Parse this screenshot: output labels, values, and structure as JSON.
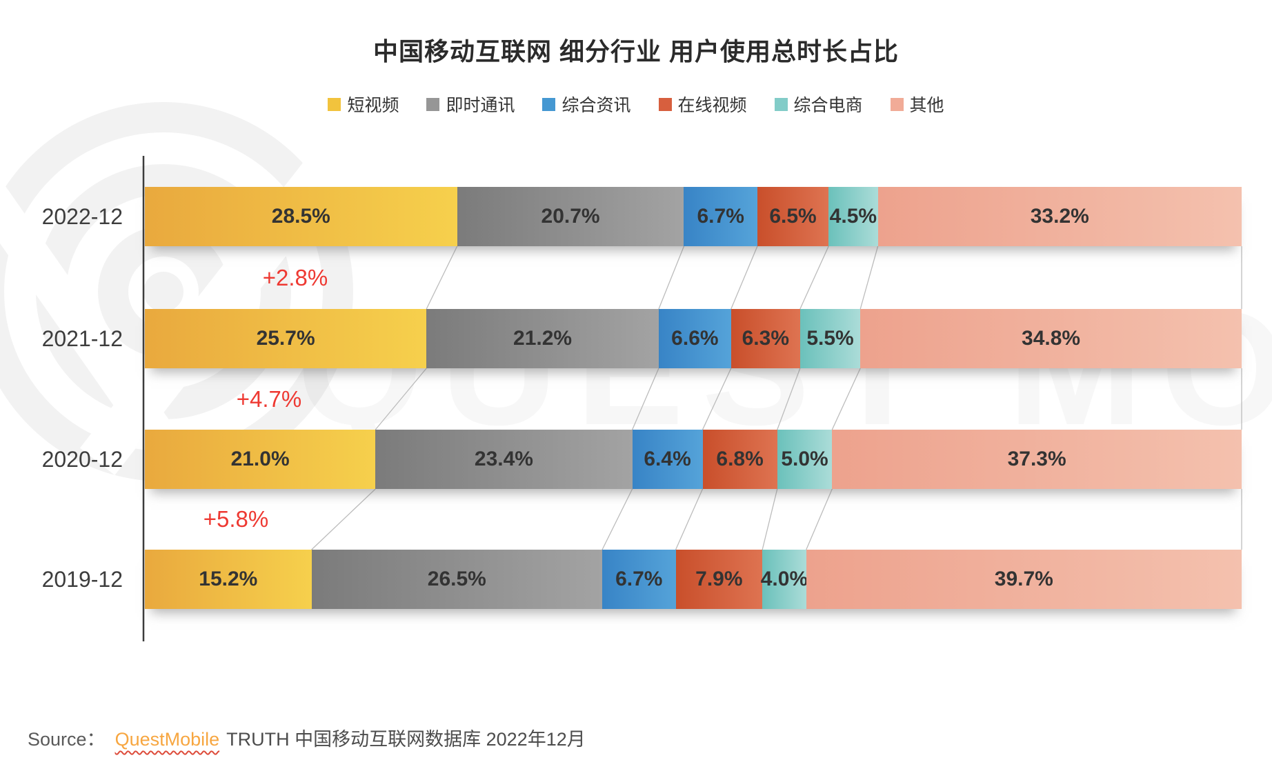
{
  "title": "中国移动互联网 细分行业 用户使用总时长占比",
  "chart_data": {
    "type": "bar",
    "orientation": "horizontal-stacked",
    "categories": [
      "2022-12",
      "2021-12",
      "2020-12",
      "2019-12"
    ],
    "series": [
      {
        "name": "短视频",
        "values": [
          28.5,
          25.7,
          21.0,
          15.2
        ],
        "color": "#F2C33D",
        "gradient": [
          "#E9A93E",
          "#F6D04C"
        ]
      },
      {
        "name": "即时通讯",
        "values": [
          20.7,
          21.2,
          23.4,
          26.5
        ],
        "color": "#969696",
        "gradient": [
          "#7B7B7B",
          "#A3A3A3"
        ]
      },
      {
        "name": "综合资讯",
        "values": [
          6.7,
          6.6,
          6.4,
          6.7
        ],
        "color": "#4598D2",
        "gradient": [
          "#3884C6",
          "#55A3D9"
        ]
      },
      {
        "name": "在线视频",
        "values": [
          6.5,
          6.3,
          6.8,
          7.9
        ],
        "color": "#D75F3E",
        "gradient": [
          "#C94F2B",
          "#DE7351"
        ]
      },
      {
        "name": "综合电商",
        "values": [
          4.5,
          5.5,
          5.0,
          4.0
        ],
        "color": "#82CCC8",
        "gradient": [
          "#6BC1BB",
          "#ABDCD8"
        ]
      },
      {
        "name": "其他",
        "values": [
          33.2,
          34.8,
          37.3,
          39.7
        ],
        "color": "#F1AB97",
        "gradient": [
          "#EDA28D",
          "#F4C1AE"
        ]
      }
    ],
    "annotations": [
      {
        "between": [
          "2022-12",
          "2021-12"
        ],
        "label": "+2.8%"
      },
      {
        "between": [
          "2021-12",
          "2020-12"
        ],
        "label": "+4.7%"
      },
      {
        "between": [
          "2020-12",
          "2019-12"
        ],
        "label": "+5.8%"
      }
    ],
    "value_suffix": "%",
    "xlim": [
      0,
      100
    ],
    "grid": false,
    "legend_position": "top-center"
  },
  "colors": {
    "annotation": "#EE3932",
    "axis": "#3c3c3c",
    "connector": "#bcbcbc",
    "bar_label": "#333333"
  },
  "watermark": {
    "text": "QUEST MOBILE"
  },
  "source": {
    "prefix": "Source：",
    "link_text": "QuestMobile",
    "suffix": "TRUTH 中国移动互联网数据库 2022年12月"
  }
}
